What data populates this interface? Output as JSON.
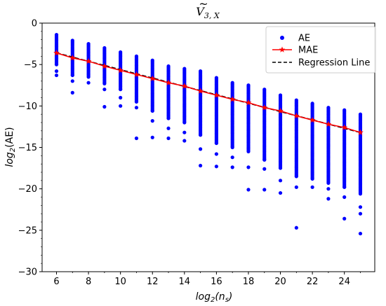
{
  "chart_data": {
    "type": "scatter",
    "title": "Ṽ3,X",
    "title_parts": {
      "main": "V",
      "tilde": "~",
      "sub": "3, X"
    },
    "xlabel": "log2(ns)",
    "xlabel_parts": {
      "pre": "log",
      "sub1": "2",
      "mid": "(n",
      "sub2": "s",
      "post": ")"
    },
    "ylabel": "log2(AE)",
    "ylabel_parts": {
      "pre": "log",
      "sub1": "2",
      "post": "(AE)"
    },
    "xlim": [
      5.1,
      25.9
    ],
    "ylim": [
      -30,
      0
    ],
    "xticks": [
      6,
      8,
      10,
      12,
      14,
      16,
      18,
      20,
      22,
      24
    ],
    "xtick_labels": [
      "6",
      "8",
      "10",
      "12",
      "14",
      "16",
      "18",
      "20",
      "22",
      "24"
    ],
    "yticks": [
      0,
      -5,
      -10,
      -15,
      -20,
      -25,
      -30
    ],
    "ytick_labels": [
      "0",
      "−5",
      "−10",
      "−15",
      "−20",
      "−25",
      "−30"
    ],
    "grid": false,
    "legend_position": "top-right",
    "colors": {
      "ae": "#0000ff",
      "mae": "#ff0000",
      "regression": "#000000"
    },
    "series": [
      {
        "name": "AE",
        "kind": "scatter",
        "columns": [
          {
            "x": 6,
            "top": -1.4,
            "dense_bottom": -5.0,
            "outliers": [
              -5.8,
              -6.3
            ]
          },
          {
            "x": 7,
            "top": -2.1,
            "dense_bottom": -6.3,
            "outliers": [
              -7.0,
              -8.4
            ]
          },
          {
            "x": 8,
            "top": -2.5,
            "dense_bottom": -6.5,
            "outliers": [
              -7.2
            ]
          },
          {
            "x": 9,
            "top": -3.0,
            "dense_bottom": -7.3,
            "outliers": [
              -8.0,
              -10.1
            ]
          },
          {
            "x": 10,
            "top": -3.5,
            "dense_bottom": -8.0,
            "outliers": [
              -9.0,
              -10.0
            ]
          },
          {
            "x": 11,
            "top": -4.0,
            "dense_bottom": -9.5,
            "outliers": [
              -10.2,
              -13.9
            ]
          },
          {
            "x": 12,
            "top": -4.5,
            "dense_bottom": -10.6,
            "outliers": [
              -11.8,
              -13.8
            ]
          },
          {
            "x": 13,
            "top": -5.2,
            "dense_bottom": -11.5,
            "outliers": [
              -12.7,
              -13.9
            ]
          },
          {
            "x": 14,
            "top": -5.5,
            "dense_bottom": -12.0,
            "outliers": [
              -13.2,
              -14.2
            ]
          },
          {
            "x": 15,
            "top": -5.8,
            "dense_bottom": -13.5,
            "outliers": [
              -15.2,
              -17.2
            ]
          },
          {
            "x": 16,
            "top": -6.6,
            "dense_bottom": -14.5,
            "outliers": [
              -15.8,
              -17.3
            ]
          },
          {
            "x": 17,
            "top": -7.2,
            "dense_bottom": -15.0,
            "outliers": [
              -16.2,
              -17.4
            ]
          },
          {
            "x": 18,
            "top": -7.5,
            "dense_bottom": -15.5,
            "outliers": [
              -17.4,
              -20.1
            ]
          },
          {
            "x": 19,
            "top": -8.0,
            "dense_bottom": -16.5,
            "outliers": [
              -17.6,
              -20.1
            ]
          },
          {
            "x": 20,
            "top": -8.7,
            "dense_bottom": -17.5,
            "outliers": [
              -19.0,
              -20.5
            ]
          },
          {
            "x": 21,
            "top": -9.3,
            "dense_bottom": -18.5,
            "outliers": [
              -19.8,
              -24.7
            ]
          },
          {
            "x": 22,
            "top": -9.7,
            "dense_bottom": -18.8,
            "outliers": [
              -19.8
            ]
          },
          {
            "x": 23,
            "top": -10.2,
            "dense_bottom": -19.3,
            "outliers": [
              -20.0,
              -21.2
            ]
          },
          {
            "x": 24,
            "top": -10.5,
            "dense_bottom": -19.8,
            "outliers": [
              -21.0,
              -23.6
            ]
          },
          {
            "x": 25,
            "top": -11.0,
            "dense_bottom": -20.6,
            "outliers": [
              -22.2,
              -23.0,
              -25.4
            ]
          }
        ]
      },
      {
        "name": "MAE",
        "kind": "line-star",
        "x": [
          6,
          7,
          8,
          9,
          10,
          11,
          12,
          13,
          14,
          15,
          16,
          17,
          18,
          19,
          20,
          21,
          22,
          23,
          24,
          25
        ],
        "y": [
          -3.6,
          -4.2,
          -4.6,
          -5.2,
          -5.7,
          -6.2,
          -6.7,
          -7.2,
          -7.6,
          -8.2,
          -8.7,
          -9.2,
          -9.6,
          -10.2,
          -10.6,
          -11.2,
          -11.7,
          -12.2,
          -12.6,
          -13.2
        ]
      },
      {
        "name": "Regression Line",
        "kind": "dashed-line",
        "x": [
          6,
          25
        ],
        "y": [
          -3.6,
          -13.2
        ]
      }
    ]
  }
}
